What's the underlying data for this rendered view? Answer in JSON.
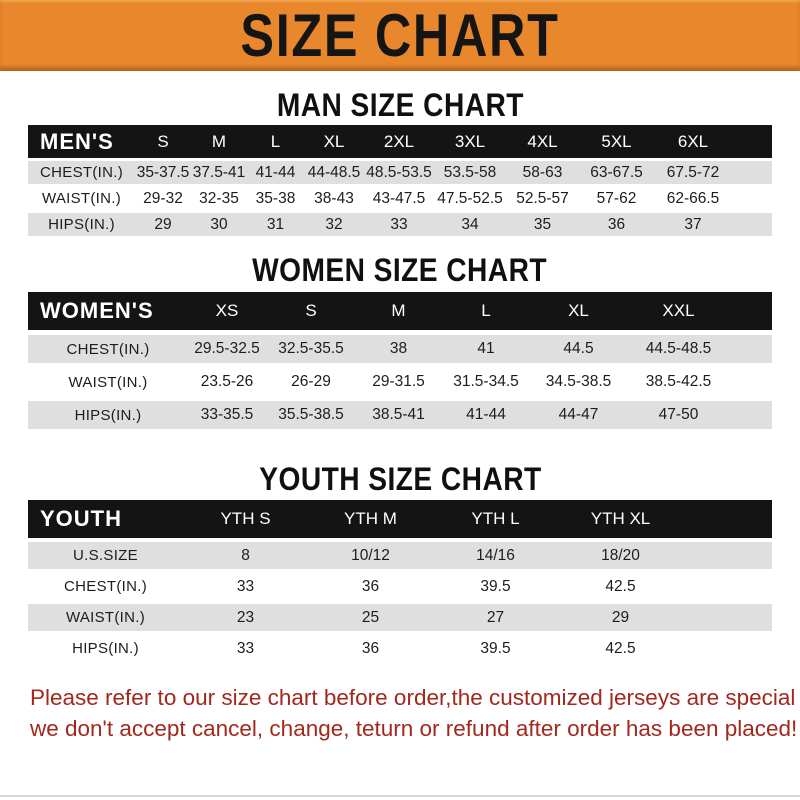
{
  "banner": {
    "title": "SIZE CHART"
  },
  "colors": {
    "banner_bg": "#E8872B",
    "header_bar": "#141414",
    "row_stripe": "#DFDFDF",
    "footer_text": "#A2281E"
  },
  "sections": [
    {
      "heading": "MAN SIZE CHART",
      "table": {
        "header": [
          "MEN'S",
          "S",
          "M",
          "L",
          "XL",
          "2XL",
          "3XL",
          "4XL",
          "5XL",
          "6XL"
        ],
        "rows": [
          [
            "CHEST(IN.)",
            "35-37.5",
            "37.5-41",
            "41-44",
            "44-48.5",
            "48.5-53.5",
            "53.5-58",
            "58-63",
            "63-67.5",
            "67.5-72"
          ],
          [
            "WAIST(IN.)",
            "29-32",
            "32-35",
            "35-38",
            "38-43",
            "43-47.5",
            "47.5-52.5",
            "52.5-57",
            "57-62",
            "62-66.5"
          ],
          [
            "HIPS(IN.)",
            "29",
            "30",
            "31",
            "32",
            "33",
            "34",
            "35",
            "36",
            "37"
          ]
        ]
      }
    },
    {
      "heading": "WOMEN SIZE CHART",
      "table": {
        "header": [
          "WOMEN'S",
          "XS",
          "S",
          "M",
          "L",
          "XL",
          "XXL"
        ],
        "rows": [
          [
            "CHEST(IN.)",
            "29.5-32.5",
            "32.5-35.5",
            "38",
            "41",
            "44.5",
            "44.5-48.5"
          ],
          [
            "WAIST(IN.)",
            "23.5-26",
            "26-29",
            "29-31.5",
            "31.5-34.5",
            "34.5-38.5",
            "38.5-42.5"
          ],
          [
            "HIPS(IN.)",
            "33-35.5",
            "35.5-38.5",
            "38.5-41",
            "41-44",
            "44-47",
            "47-50"
          ]
        ]
      }
    },
    {
      "heading": "YOUTH SIZE CHART",
      "table": {
        "header": [
          "YOUTH",
          "YTH S",
          "YTH M",
          "YTH L",
          "YTH XL"
        ],
        "rows": [
          [
            "U.S.SIZE",
            "8",
            "10/12",
            "14/16",
            "18/20"
          ],
          [
            "CHEST(IN.)",
            "33",
            "36",
            "39.5",
            "42.5"
          ],
          [
            "WAIST(IN.)",
            "23",
            "25",
            "27",
            "29"
          ],
          [
            "HIPS(IN.)",
            "33",
            "36",
            "39.5",
            "42.5"
          ]
        ]
      }
    }
  ],
  "footer": {
    "line1": "Please refer to our size chart before order,the customized jerseys are special products,",
    "line2": "we don't accept cancel, change, teturn or refund after order has been placed!"
  }
}
